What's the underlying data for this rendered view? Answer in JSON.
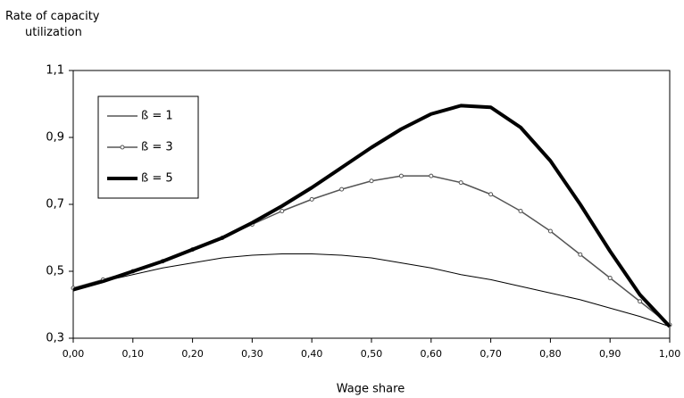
{
  "chart_data": {
    "type": "line",
    "y_label": "Rate of capacity utilization",
    "x_label": "Wage share",
    "x": [
      0,
      0.05,
      0.1,
      0.15,
      0.2,
      0.25,
      0.3,
      0.35,
      0.4,
      0.45,
      0.5,
      0.55,
      0.6,
      0.65,
      0.7,
      0.75,
      0.8,
      0.85,
      0.9,
      0.95,
      1.0
    ],
    "series": [
      {
        "name": "ß = 1",
        "color": "#000000",
        "width": 1,
        "markers": false,
        "values": [
          0.445,
          0.47,
          0.49,
          0.51,
          0.525,
          0.54,
          0.548,
          0.552,
          0.552,
          0.548,
          0.54,
          0.525,
          0.51,
          0.49,
          0.475,
          0.455,
          0.435,
          0.415,
          0.39,
          0.365,
          0.335
        ]
      },
      {
        "name": "ß = 3",
        "color": "#555555",
        "width": 1.5,
        "markers": true,
        "values": [
          0.45,
          0.475,
          0.5,
          0.53,
          0.565,
          0.6,
          0.64,
          0.68,
          0.715,
          0.745,
          0.77,
          0.785,
          0.785,
          0.765,
          0.73,
          0.68,
          0.62,
          0.55,
          0.48,
          0.41,
          0.34
        ]
      },
      {
        "name": "ß = 5",
        "color": "#000000",
        "width": 4,
        "markers": false,
        "values": [
          0.445,
          0.47,
          0.5,
          0.53,
          0.565,
          0.6,
          0.645,
          0.695,
          0.75,
          0.81,
          0.87,
          0.925,
          0.97,
          0.995,
          0.99,
          0.93,
          0.83,
          0.7,
          0.56,
          0.43,
          0.335
        ]
      }
    ],
    "xlim": [
      0,
      1
    ],
    "ylim": [
      0.3,
      1.1
    ],
    "xticks": [
      {
        "value": 0,
        "label": "0,00"
      },
      {
        "value": 0.1,
        "label": "0,10"
      },
      {
        "value": 0.2,
        "label": "0,20"
      },
      {
        "value": 0.3,
        "label": "0,30"
      },
      {
        "value": 0.4,
        "label": "0,40"
      },
      {
        "value": 0.5,
        "label": "0,50"
      },
      {
        "value": 0.6,
        "label": "0,60"
      },
      {
        "value": 0.7,
        "label": "0,70"
      },
      {
        "value": 0.8,
        "label": "0,80"
      },
      {
        "value": 0.9,
        "label": "0,90"
      },
      {
        "value": 1.0,
        "label": "1,00"
      }
    ],
    "yticks": [
      {
        "value": 0.3,
        "label": "0,3"
      },
      {
        "value": 0.5,
        "label": "0,5"
      },
      {
        "value": 0.7,
        "label": "0,7"
      },
      {
        "value": 0.9,
        "label": "0,9"
      },
      {
        "value": 1.1,
        "label": "1,1"
      }
    ],
    "grid": false,
    "legend": "top-left"
  }
}
